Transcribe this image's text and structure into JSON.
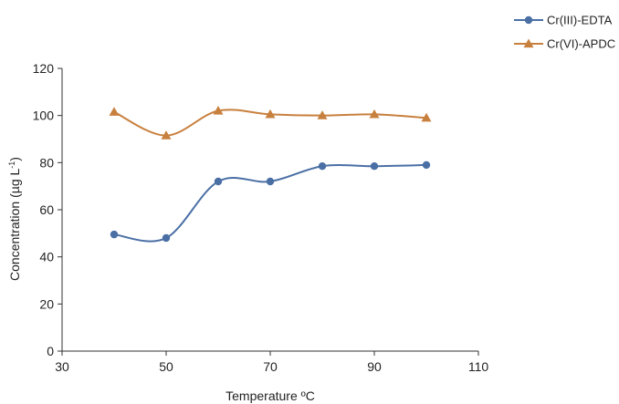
{
  "chart_data": {
    "type": "line",
    "title": "",
    "xlabel": "Temperature ºC",
    "ylabel": "Concentration (µg L",
    "ylabel_superscript": "-1",
    "ylabel_suffix": ")",
    "xlim": [
      30,
      110
    ],
    "ylim": [
      0,
      120
    ],
    "xticks": [
      30,
      50,
      70,
      90,
      110
    ],
    "yticks": [
      0,
      20,
      40,
      60,
      80,
      100,
      120
    ],
    "grid": false,
    "legend_position": "top-right",
    "x": [
      40,
      50,
      60,
      70,
      80,
      90,
      100
    ],
    "series": [
      {
        "name": "Cr(III)-EDTA",
        "color": "#4a6fa5",
        "marker": "circle",
        "values": [
          49.5,
          48,
          72,
          72,
          78.5,
          78.5,
          79
        ]
      },
      {
        "name": "Cr(VI)-APDC",
        "color": "#c8803e",
        "marker": "triangle",
        "values": [
          101.5,
          91.5,
          102,
          100.5,
          100,
          100.5,
          99
        ]
      }
    ]
  }
}
